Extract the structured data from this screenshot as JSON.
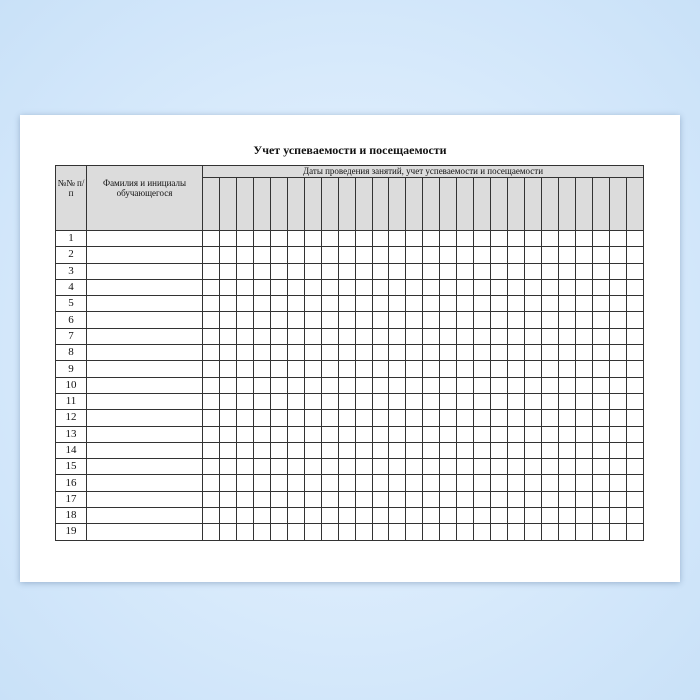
{
  "title": "Учет успеваемости и посещаемости",
  "headers": {
    "number": "№№ п/п",
    "name": "Фамилия и инициалы обучающегося",
    "dates": "Даты проведения занятий, учет успеваемости и посещаемости"
  },
  "rows": [
    "1",
    "2",
    "3",
    "4",
    "5",
    "6",
    "7",
    "8",
    "9",
    "10",
    "11",
    "12",
    "13",
    "14",
    "15",
    "16",
    "17",
    "18",
    "19"
  ],
  "date_column_count": 26
}
